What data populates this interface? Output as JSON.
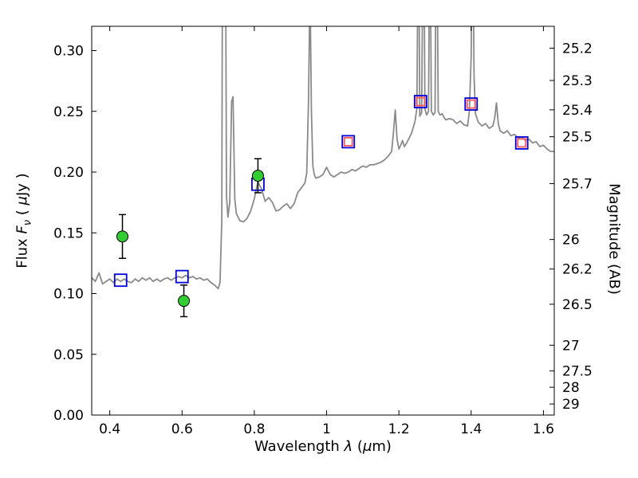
{
  "labels": {
    "x": {
      "word": "Wavelength ",
      "lambda": "λ",
      "open": " (",
      "mu": "μ",
      "close": "m)"
    },
    "y_left": {
      "flux": "Flux ",
      "f": "F",
      "nu": "ν",
      "open": " ( ",
      "mu": "μ",
      "rest": "Jy )"
    },
    "y_right": "Magnitude (AB)"
  },
  "chart_data": {
    "type": "line",
    "title": "",
    "xlabel": "Wavelength λ (μm)",
    "ylabel_left": "Flux Fν ( μJy )",
    "ylabel_right": "Magnitude (AB)",
    "grid": false,
    "legend": "none",
    "x_axis": {
      "range": [
        0.35,
        1.63
      ],
      "ticks": [
        0.4,
        0.6,
        0.8,
        1.0,
        1.2,
        1.4,
        1.6
      ],
      "tick_labels": [
        "0.4",
        "0.6",
        "0.8",
        "1",
        "1.2",
        "1.4",
        "1.6"
      ]
    },
    "y_axis_left": {
      "range": [
        0.0,
        0.32
      ],
      "ticks": [
        0.0,
        0.05,
        0.1,
        0.15,
        0.2,
        0.25,
        0.3
      ],
      "tick_labels": [
        "0.00",
        "0.05",
        "0.10",
        "0.15",
        "0.20",
        "0.25",
        "0.30"
      ]
    },
    "y_axis_right": {
      "ticks": [
        {
          "label": "25.2",
          "flux": 0.302
        },
        {
          "label": "25.3",
          "flux": 0.2754
        },
        {
          "label": "25.4",
          "flux": 0.2512
        },
        {
          "label": "25.5",
          "flux": 0.2291
        },
        {
          "label": "25.7",
          "flux": 0.1905
        },
        {
          "label": "26",
          "flux": 0.1445
        },
        {
          "label": "26.2",
          "flux": 0.1202
        },
        {
          "label": "26.5",
          "flux": 0.0912
        },
        {
          "label": "27",
          "flux": 0.0575
        },
        {
          "label": "27.5",
          "flux": 0.0363
        },
        {
          "label": "28",
          "flux": 0.0229
        },
        {
          "label": "29",
          "flux": 0.0091
        }
      ]
    },
    "series": [
      {
        "name": "model-spectrum",
        "type": "line",
        "color": "#8a8a8a",
        "width": 1.8,
        "points": [
          [
            0.35,
            0.113
          ],
          [
            0.36,
            0.11
          ],
          [
            0.37,
            0.117
          ],
          [
            0.38,
            0.108
          ],
          [
            0.39,
            0.11
          ],
          [
            0.4,
            0.112
          ],
          [
            0.41,
            0.109
          ],
          [
            0.42,
            0.112
          ],
          [
            0.43,
            0.11
          ],
          [
            0.44,
            0.112
          ],
          [
            0.45,
            0.11
          ],
          [
            0.46,
            0.109
          ],
          [
            0.47,
            0.112
          ],
          [
            0.48,
            0.11
          ],
          [
            0.49,
            0.113
          ],
          [
            0.5,
            0.111
          ],
          [
            0.51,
            0.113
          ],
          [
            0.52,
            0.11
          ],
          [
            0.53,
            0.112
          ],
          [
            0.54,
            0.11
          ],
          [
            0.55,
            0.112
          ],
          [
            0.56,
            0.113
          ],
          [
            0.57,
            0.111
          ],
          [
            0.58,
            0.113
          ],
          [
            0.59,
            0.114
          ],
          [
            0.6,
            0.113
          ],
          [
            0.61,
            0.115
          ],
          [
            0.62,
            0.113
          ],
          [
            0.63,
            0.114
          ],
          [
            0.64,
            0.112
          ],
          [
            0.65,
            0.113
          ],
          [
            0.66,
            0.111
          ],
          [
            0.67,
            0.112
          ],
          [
            0.68,
            0.109
          ],
          [
            0.69,
            0.107
          ],
          [
            0.7,
            0.104
          ],
          [
            0.705,
            0.109
          ],
          [
            0.71,
            0.16
          ],
          [
            0.714,
            0.62
          ],
          [
            0.719,
            0.5
          ],
          [
            0.723,
            0.18
          ],
          [
            0.727,
            0.163
          ],
          [
            0.732,
            0.175
          ],
          [
            0.737,
            0.258
          ],
          [
            0.741,
            0.262
          ],
          [
            0.746,
            0.178
          ],
          [
            0.75,
            0.166
          ],
          [
            0.755,
            0.163
          ],
          [
            0.76,
            0.16
          ],
          [
            0.77,
            0.159
          ],
          [
            0.78,
            0.162
          ],
          [
            0.79,
            0.168
          ],
          [
            0.8,
            0.178
          ],
          [
            0.81,
            0.192
          ],
          [
            0.82,
            0.186
          ],
          [
            0.83,
            0.176
          ],
          [
            0.84,
            0.179
          ],
          [
            0.85,
            0.175
          ],
          [
            0.86,
            0.168
          ],
          [
            0.87,
            0.169
          ],
          [
            0.88,
            0.172
          ],
          [
            0.89,
            0.174
          ],
          [
            0.9,
            0.17
          ],
          [
            0.91,
            0.174
          ],
          [
            0.92,
            0.183
          ],
          [
            0.93,
            0.187
          ],
          [
            0.935,
            0.189
          ],
          [
            0.94,
            0.191
          ],
          [
            0.945,
            0.199
          ],
          [
            0.95,
            0.26
          ],
          [
            0.954,
            0.355
          ],
          [
            0.958,
            0.25
          ],
          [
            0.962,
            0.205
          ],
          [
            0.966,
            0.198
          ],
          [
            0.97,
            0.195
          ],
          [
            0.98,
            0.196
          ],
          [
            0.99,
            0.198
          ],
          [
            1.0,
            0.204
          ],
          [
            1.01,
            0.198
          ],
          [
            1.02,
            0.196
          ],
          [
            1.03,
            0.198
          ],
          [
            1.04,
            0.2
          ],
          [
            1.05,
            0.199
          ],
          [
            1.06,
            0.2
          ],
          [
            1.07,
            0.202
          ],
          [
            1.08,
            0.201
          ],
          [
            1.09,
            0.203
          ],
          [
            1.1,
            0.205
          ],
          [
            1.11,
            0.204
          ],
          [
            1.12,
            0.206
          ],
          [
            1.13,
            0.206
          ],
          [
            1.14,
            0.207
          ],
          [
            1.15,
            0.208
          ],
          [
            1.16,
            0.21
          ],
          [
            1.17,
            0.213
          ],
          [
            1.18,
            0.217
          ],
          [
            1.185,
            0.233
          ],
          [
            1.19,
            0.251
          ],
          [
            1.195,
            0.227
          ],
          [
            1.2,
            0.219
          ],
          [
            1.205,
            0.222
          ],
          [
            1.21,
            0.226
          ],
          [
            1.215,
            0.221
          ],
          [
            1.22,
            0.223
          ],
          [
            1.225,
            0.226
          ],
          [
            1.23,
            0.229
          ],
          [
            1.235,
            0.232
          ],
          [
            1.24,
            0.237
          ],
          [
            1.245,
            0.242
          ],
          [
            1.25,
            0.253
          ],
          [
            1.254,
            0.43
          ],
          [
            1.258,
            0.246
          ],
          [
            1.263,
            0.249
          ],
          [
            1.268,
            0.44
          ],
          [
            1.272,
            0.252
          ],
          [
            1.277,
            0.247
          ],
          [
            1.282,
            0.25
          ],
          [
            1.286,
            0.42
          ],
          [
            1.29,
            0.25
          ],
          [
            1.295,
            0.247
          ],
          [
            1.3,
            0.249
          ],
          [
            1.304,
            0.445
          ],
          [
            1.309,
            0.25
          ],
          [
            1.314,
            0.247
          ],
          [
            1.32,
            0.248
          ],
          [
            1.325,
            0.245
          ],
          [
            1.33,
            0.243
          ],
          [
            1.34,
            0.244
          ],
          [
            1.35,
            0.243
          ],
          [
            1.36,
            0.24
          ],
          [
            1.37,
            0.242
          ],
          [
            1.38,
            0.239
          ],
          [
            1.39,
            0.238
          ],
          [
            1.395,
            0.25
          ],
          [
            1.4,
            0.295
          ],
          [
            1.404,
            0.435
          ],
          [
            1.408,
            0.28
          ],
          [
            1.412,
            0.248
          ],
          [
            1.42,
            0.241
          ],
          [
            1.43,
            0.238
          ],
          [
            1.44,
            0.24
          ],
          [
            1.45,
            0.236
          ],
          [
            1.46,
            0.238
          ],
          [
            1.465,
            0.244
          ],
          [
            1.47,
            0.257
          ],
          [
            1.475,
            0.24
          ],
          [
            1.48,
            0.234
          ],
          [
            1.49,
            0.232
          ],
          [
            1.5,
            0.234
          ],
          [
            1.51,
            0.23
          ],
          [
            1.52,
            0.231
          ],
          [
            1.53,
            0.228
          ],
          [
            1.54,
            0.229
          ],
          [
            1.55,
            0.226
          ],
          [
            1.56,
            0.227
          ],
          [
            1.57,
            0.224
          ],
          [
            1.58,
            0.225
          ],
          [
            1.59,
            0.221
          ],
          [
            1.6,
            0.222
          ],
          [
            1.61,
            0.219
          ],
          [
            1.62,
            0.217
          ],
          [
            1.63,
            0.217
          ]
        ]
      },
      {
        "name": "measured-flux-points",
        "type": "scatter",
        "marker": "circle",
        "fill": "#33cc33",
        "edge": "#000000",
        "radius": 7,
        "errorbar_color": "#000000",
        "points": [
          {
            "x": 0.435,
            "y": 0.147,
            "yerr": 0.018
          },
          {
            "x": 0.605,
            "y": 0.094,
            "yerr": 0.013
          },
          {
            "x": 0.81,
            "y": 0.197,
            "yerr": 0.014
          }
        ]
      },
      {
        "name": "model-photometry-red-squares",
        "type": "scatter",
        "marker": "open-square",
        "edge": "#ff5555",
        "size": 10,
        "points": [
          [
            1.06,
            0.225
          ],
          [
            1.26,
            0.258
          ],
          [
            1.4,
            0.256
          ],
          [
            1.54,
            0.224
          ]
        ]
      },
      {
        "name": "observed-photometry-blue-squares",
        "type": "scatter",
        "marker": "open-square",
        "edge": "#0000dd",
        "size": 15,
        "points": [
          [
            0.43,
            0.111
          ],
          [
            0.6,
            0.114
          ],
          [
            0.81,
            0.19
          ],
          [
            1.06,
            0.225
          ],
          [
            1.26,
            0.258
          ],
          [
            1.4,
            0.256
          ],
          [
            1.54,
            0.224
          ]
        ]
      }
    ]
  }
}
